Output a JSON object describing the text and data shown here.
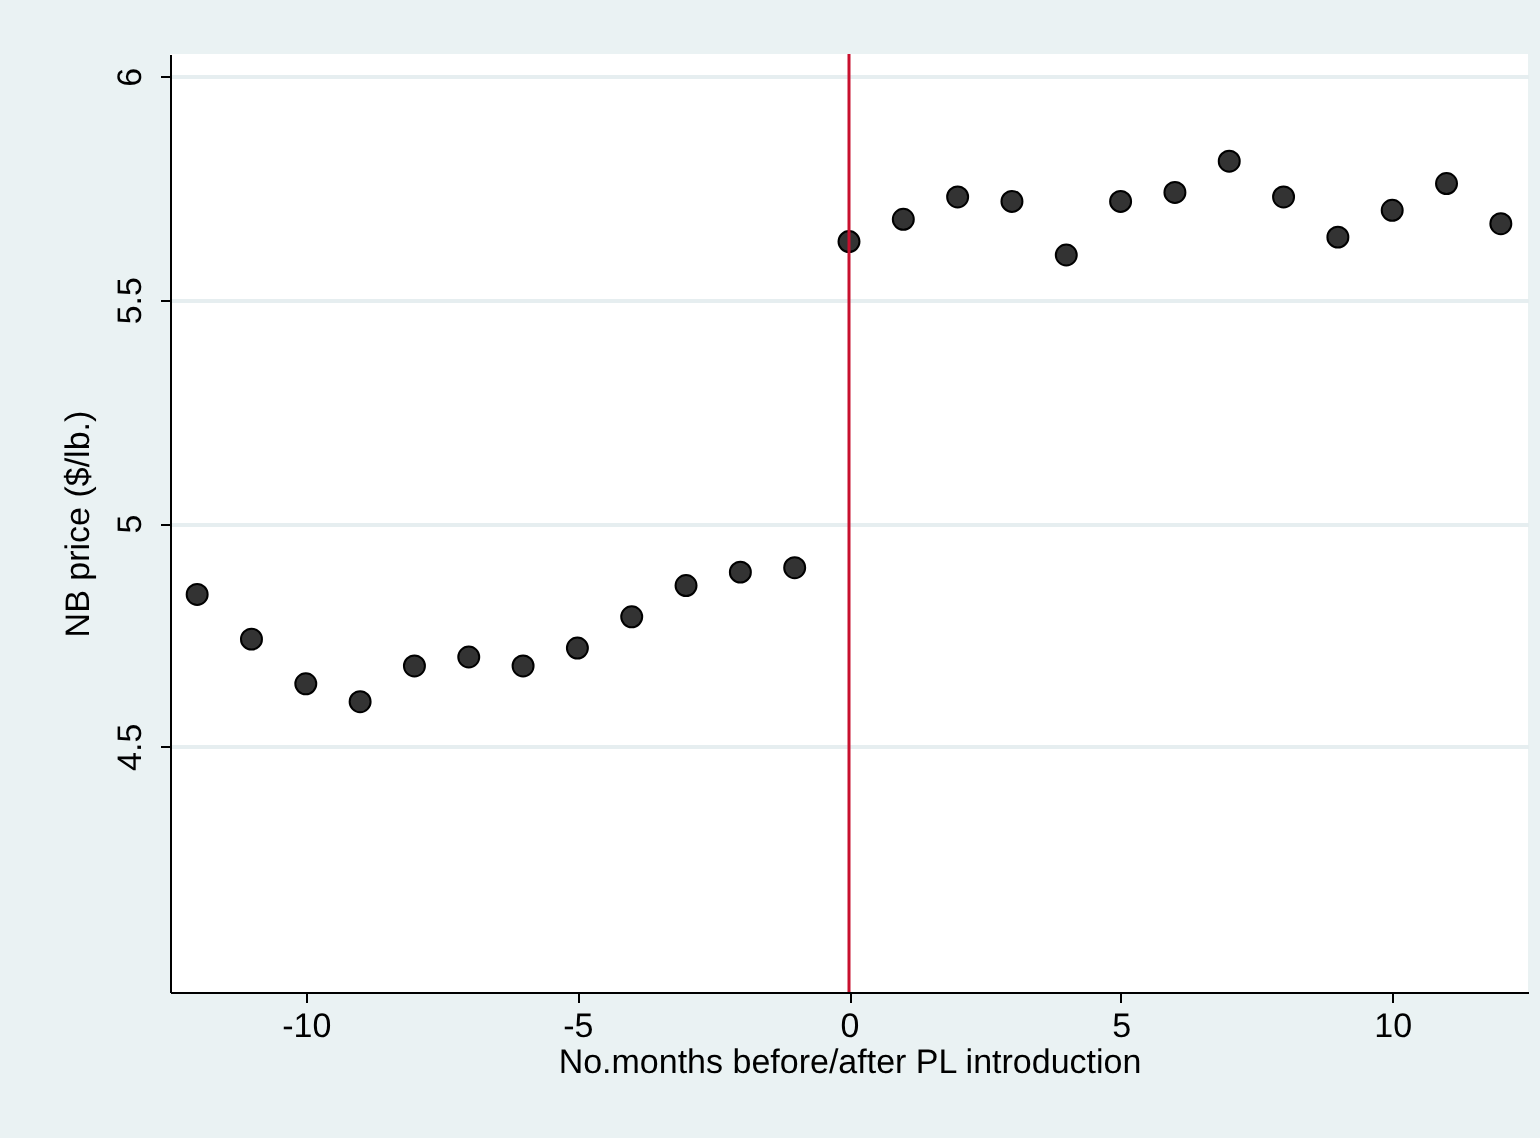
{
  "chart_data": {
    "type": "scatter",
    "xlabel": "No.months before/after PL introduction",
    "ylabel": "NB price ($/lb.)",
    "x": [
      -12,
      -11,
      -10,
      -9,
      -8,
      -7,
      -6,
      -5,
      -4,
      -3,
      -2,
      -1,
      0,
      1,
      2,
      3,
      4,
      5,
      6,
      7,
      8,
      9,
      10,
      11,
      12
    ],
    "series": [
      {
        "color": "#333333",
        "values": [
          4.84,
          4.74,
          4.64,
          4.6,
          4.68,
          4.7,
          4.68,
          4.72,
          4.79,
          4.86,
          4.89,
          4.9,
          5.63,
          5.68,
          5.73,
          5.72,
          5.6,
          5.72,
          5.74,
          5.81,
          5.73,
          5.64,
          5.7,
          5.76,
          5.67
        ]
      }
    ],
    "xlim": [
      -12.5,
      12.5
    ],
    "xticks": [
      -10,
      -5,
      0,
      5,
      10
    ],
    "ylim": [
      3.95,
      6.05
    ],
    "yticks": [
      4.5,
      5,
      5.5,
      6
    ],
    "ref_lines": [
      {
        "axis": "x",
        "value": 0,
        "color": "#c8102e"
      }
    ],
    "grid": "y",
    "marker": "circle",
    "legend": false
  }
}
